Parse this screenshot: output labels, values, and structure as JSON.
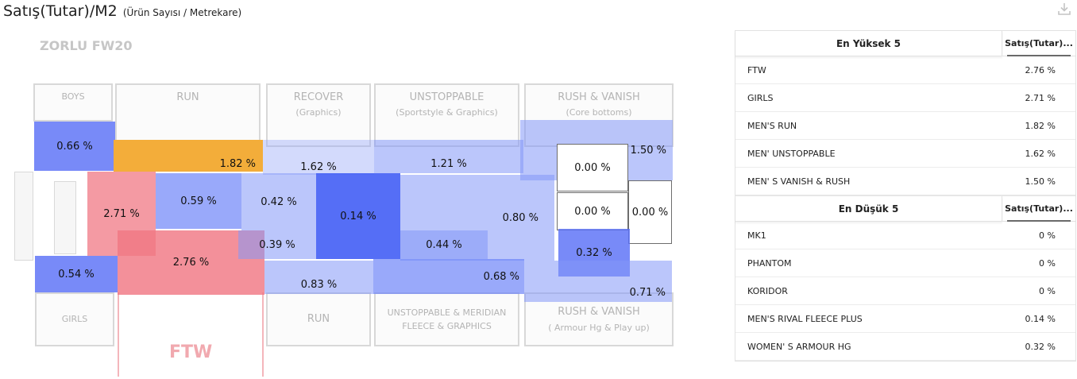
{
  "header": {
    "title": "Satış(Tutar)/M2",
    "subtitle": "(Ürün Sayısı / Metrekare)",
    "download_icon": "download-icon"
  },
  "floor_plan": {
    "store_name": "ZORLU FW20",
    "outline_labels": {
      "boys": "BOYS",
      "run_top": "RUN",
      "recover": "RECOVER",
      "recover_sub": "(Graphics)",
      "unstoppable": "UNSTOPPABLE",
      "unstoppable_sub": "(Sportstyle & Graphics)",
      "rush_top": "RUSH & VANISH",
      "rush_top_sub": "(Core bottoms)",
      "girls": "GIRLS",
      "run_bottom": "RUN",
      "unstoppable_meridian": "UNSTOPPABLE & MERIDIAN",
      "unstoppable_meridian_sub": "FLEECE & GRAPHICS",
      "rush_bottom": "RUSH & VANISH",
      "rush_bottom_sub": "( Armour Hg & Play up)",
      "ftw": "FTW"
    },
    "zone_values": {
      "boys": "0.66 %",
      "mens_run": "1.82 %",
      "recover": "1.62 %",
      "unstoppable": "1.21 %",
      "rush_a": "0.00 %",
      "rush_core": "1.50 %",
      "girls_side": "2.71 %",
      "mid_a": "0.59 %",
      "mid_b": "0.42 %",
      "rival_fleece": "0.14 %",
      "the_rock": "0.80 %",
      "rush_b": "0.00 %",
      "rush_c": "0.00 %",
      "mid_c": "0.39 %",
      "mid_d": "0.44 %",
      "armour": "0.32 %",
      "ftw": "2.76 %",
      "girls": "0.54 %",
      "run_bottom": "0.83 %",
      "meridian": "0.68 %",
      "rush_bottom": "0.71 %"
    },
    "colors": {
      "top_value": "#f3ad3a",
      "high_values": "#f0788a",
      "low_values": "#5a70f7",
      "zero_values": "#ffffff"
    }
  },
  "top5": {
    "header": "En Yüksek 5",
    "value_header": "Satış(Tutar)...",
    "rows": [
      {
        "name": "FTW",
        "value": "2.76 %"
      },
      {
        "name": "GIRLS",
        "value": "2.71 %"
      },
      {
        "name": "MEN'S RUN",
        "value": "1.82 %"
      },
      {
        "name": "MEN' UNSTOPPABLE",
        "value": "1.62 %"
      },
      {
        "name": "MEN' S VANISH & RUSH",
        "value": "1.50 %"
      }
    ]
  },
  "bottom5": {
    "header": "En Düşük 5",
    "value_header": "Satış(Tutar)...",
    "rows": [
      {
        "name": "MK1",
        "value": "0 %"
      },
      {
        "name": "PHANTOM",
        "value": "0 %"
      },
      {
        "name": "KORIDOR",
        "value": "0 %"
      },
      {
        "name": "MEN'S RIVAL FLEECE PLUS",
        "value": "0.14 %"
      },
      {
        "name": "WOMEN' S ARMOUR HG",
        "value": "0.32 %"
      }
    ]
  }
}
